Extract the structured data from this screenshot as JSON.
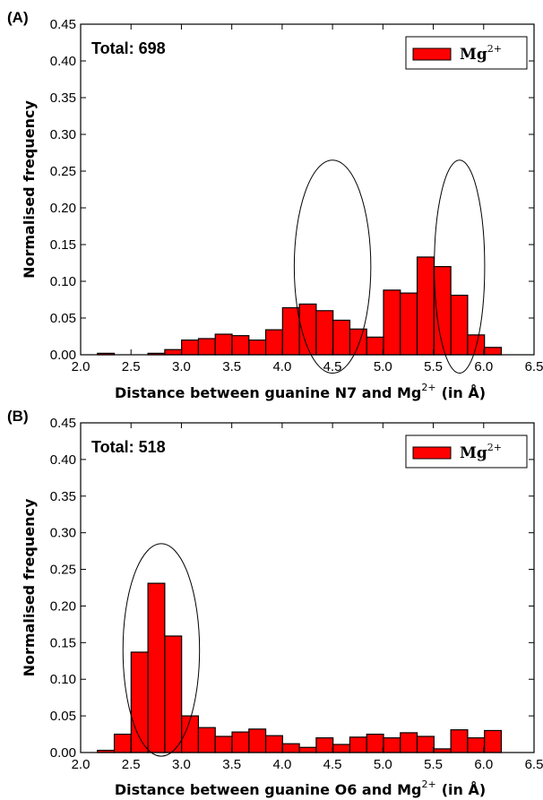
{
  "chart_data": [
    {
      "type": "bar",
      "panel_label": "(A)",
      "annotation": "Total: 698",
      "legend": {
        "label": "Mg",
        "superscript": "2+",
        "placement": "top-right",
        "color": "#ff0000"
      },
      "xlabel": "Distance between guanine N7 and Mg",
      "xlabel_sup": "2+",
      "xlabel_unit": "(in Å)",
      "ylabel": "Normalised frequency",
      "xlim": [
        2.0,
        6.5
      ],
      "ylim": [
        0.0,
        0.45
      ],
      "xticks": [
        "2.0",
        "2.5",
        "3.0",
        "3.5",
        "4.0",
        "4.5",
        "5.0",
        "5.5",
        "6.0",
        "6.5"
      ],
      "yticks": [
        "0.00",
        "0.05",
        "0.10",
        "0.15",
        "0.20",
        "0.25",
        "0.30",
        "0.35",
        "0.40",
        "0.45"
      ],
      "bin_width": 0.167,
      "bin_start": 2.0,
      "values": [
        0.0,
        0.002,
        0.0,
        0.0,
        0.002,
        0.007,
        0.02,
        0.022,
        0.028,
        0.026,
        0.02,
        0.034,
        0.064,
        0.069,
        0.06,
        0.047,
        0.035,
        0.024,
        0.088,
        0.084,
        0.133,
        0.12,
        0.081,
        0.027,
        0.01
      ],
      "ellipses": [
        {
          "cx": 4.5,
          "cy": 0.12,
          "rx": 0.38,
          "ry": 0.145
        },
        {
          "cx": 5.76,
          "cy": 0.12,
          "rx": 0.25,
          "ry": 0.145
        }
      ]
    },
    {
      "type": "bar",
      "panel_label": "(B)",
      "annotation": "Total: 518",
      "legend": {
        "label": "Mg",
        "superscript": "2+",
        "placement": "top-right",
        "color": "#ff0000"
      },
      "xlabel": "Distance between guanine O6 and Mg",
      "xlabel_sup": "2+",
      "xlabel_unit": "(in Å)",
      "ylabel": "Normalised frequency",
      "xlim": [
        2.0,
        6.5
      ],
      "ylim": [
        0.0,
        0.45
      ],
      "xticks": [
        "2.0",
        "2.5",
        "3.0",
        "3.5",
        "4.0",
        "4.5",
        "5.0",
        "5.5",
        "6.0",
        "6.5"
      ],
      "yticks": [
        "0.00",
        "0.05",
        "0.10",
        "0.15",
        "0.20",
        "0.25",
        "0.30",
        "0.35",
        "0.40",
        "0.45"
      ],
      "bin_width": 0.167,
      "bin_start": 2.0,
      "values": [
        0.0,
        0.003,
        0.025,
        0.137,
        0.231,
        0.159,
        0.05,
        0.034,
        0.022,
        0.028,
        0.032,
        0.023,
        0.012,
        0.007,
        0.02,
        0.011,
        0.021,
        0.025,
        0.02,
        0.027,
        0.022,
        0.005,
        0.031,
        0.02,
        0.03
      ],
      "ellipses": [
        {
          "cx": 2.8,
          "cy": 0.14,
          "rx": 0.38,
          "ry": 0.145
        }
      ]
    }
  ]
}
